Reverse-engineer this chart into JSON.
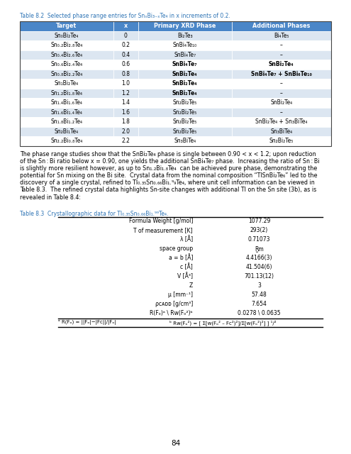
{
  "table8_2_caption": "Table 8.2  Selected phase range entries for SnₓBiₓTe₄ in x increments of 0.2.",
  "table8_2_headers": [
    "Target",
    "x",
    "Primary XRD Phase",
    "Additional Phases"
  ],
  "table8_2_rows": [
    [
      "Sn₀Bi₂Te₄",
      "0",
      "Bi₂Te₃",
      "Bi₄Te₅"
    ],
    [
      "Sn₀.₂Bi₂.₈Te₄",
      "0.2",
      "SnBi₄Te₁₀",
      "–"
    ],
    [
      "Sn₀.₄Bi₂.₆Te₄",
      "0.4",
      "SnBi₄Te₇",
      "–"
    ],
    [
      "Sn₀.₆Bi₂.₄Te₄",
      "0.6",
      "SnBi₄Te₇",
      "SnBi₂Te₄"
    ],
    [
      "Sn₀.₈Bi₂.₂Te₄",
      "0.8",
      "SnBi₂Te₄",
      "SnBi₄Te₇ + SnBi₆Te₁₀"
    ],
    [
      "Sn₁Bi₂Te₄",
      "1.0",
      "SnBi₂Te₄",
      "–"
    ],
    [
      "Sn₁.₂Bi₁.₈Te₄",
      "1.2",
      "SnBi₂Te₄",
      "–"
    ],
    [
      "Sn₁.₄Bi₁.₆Te₄",
      "1.4",
      "Sn₂Bi₂Te₅",
      "SnBi₂Te₄"
    ],
    [
      "Sn₁.₆Bi₁.₄Te₄",
      "1.6",
      "Sn₂Bi₂Te₅",
      "–"
    ],
    [
      "Sn₁.₈Bi₁.₂Te₄",
      "1.8",
      "Sn₂Bi₂Te₅",
      "SnBi₂Te₄ + Sn₃BiTe₄"
    ],
    [
      "Sn₂Bi₁Te₄",
      "2.0",
      "Sn₂Bi₂Te₅",
      "Sn₃BiTe₄"
    ],
    [
      "Sn₂.₂Bi₀.₈Te₄",
      "2.2",
      "Sn₃BiTe₄",
      "Sn₂Bi₂Te₅"
    ]
  ],
  "header_bg": "#4a86c8",
  "header_color": "white",
  "row_bg_odd": "#dce6f1",
  "row_bg_even": "#ffffff",
  "bold_primary_idx": [
    3,
    4,
    5,
    6
  ],
  "bold_additional_idx": [
    3,
    4
  ],
  "page_number": "84"
}
